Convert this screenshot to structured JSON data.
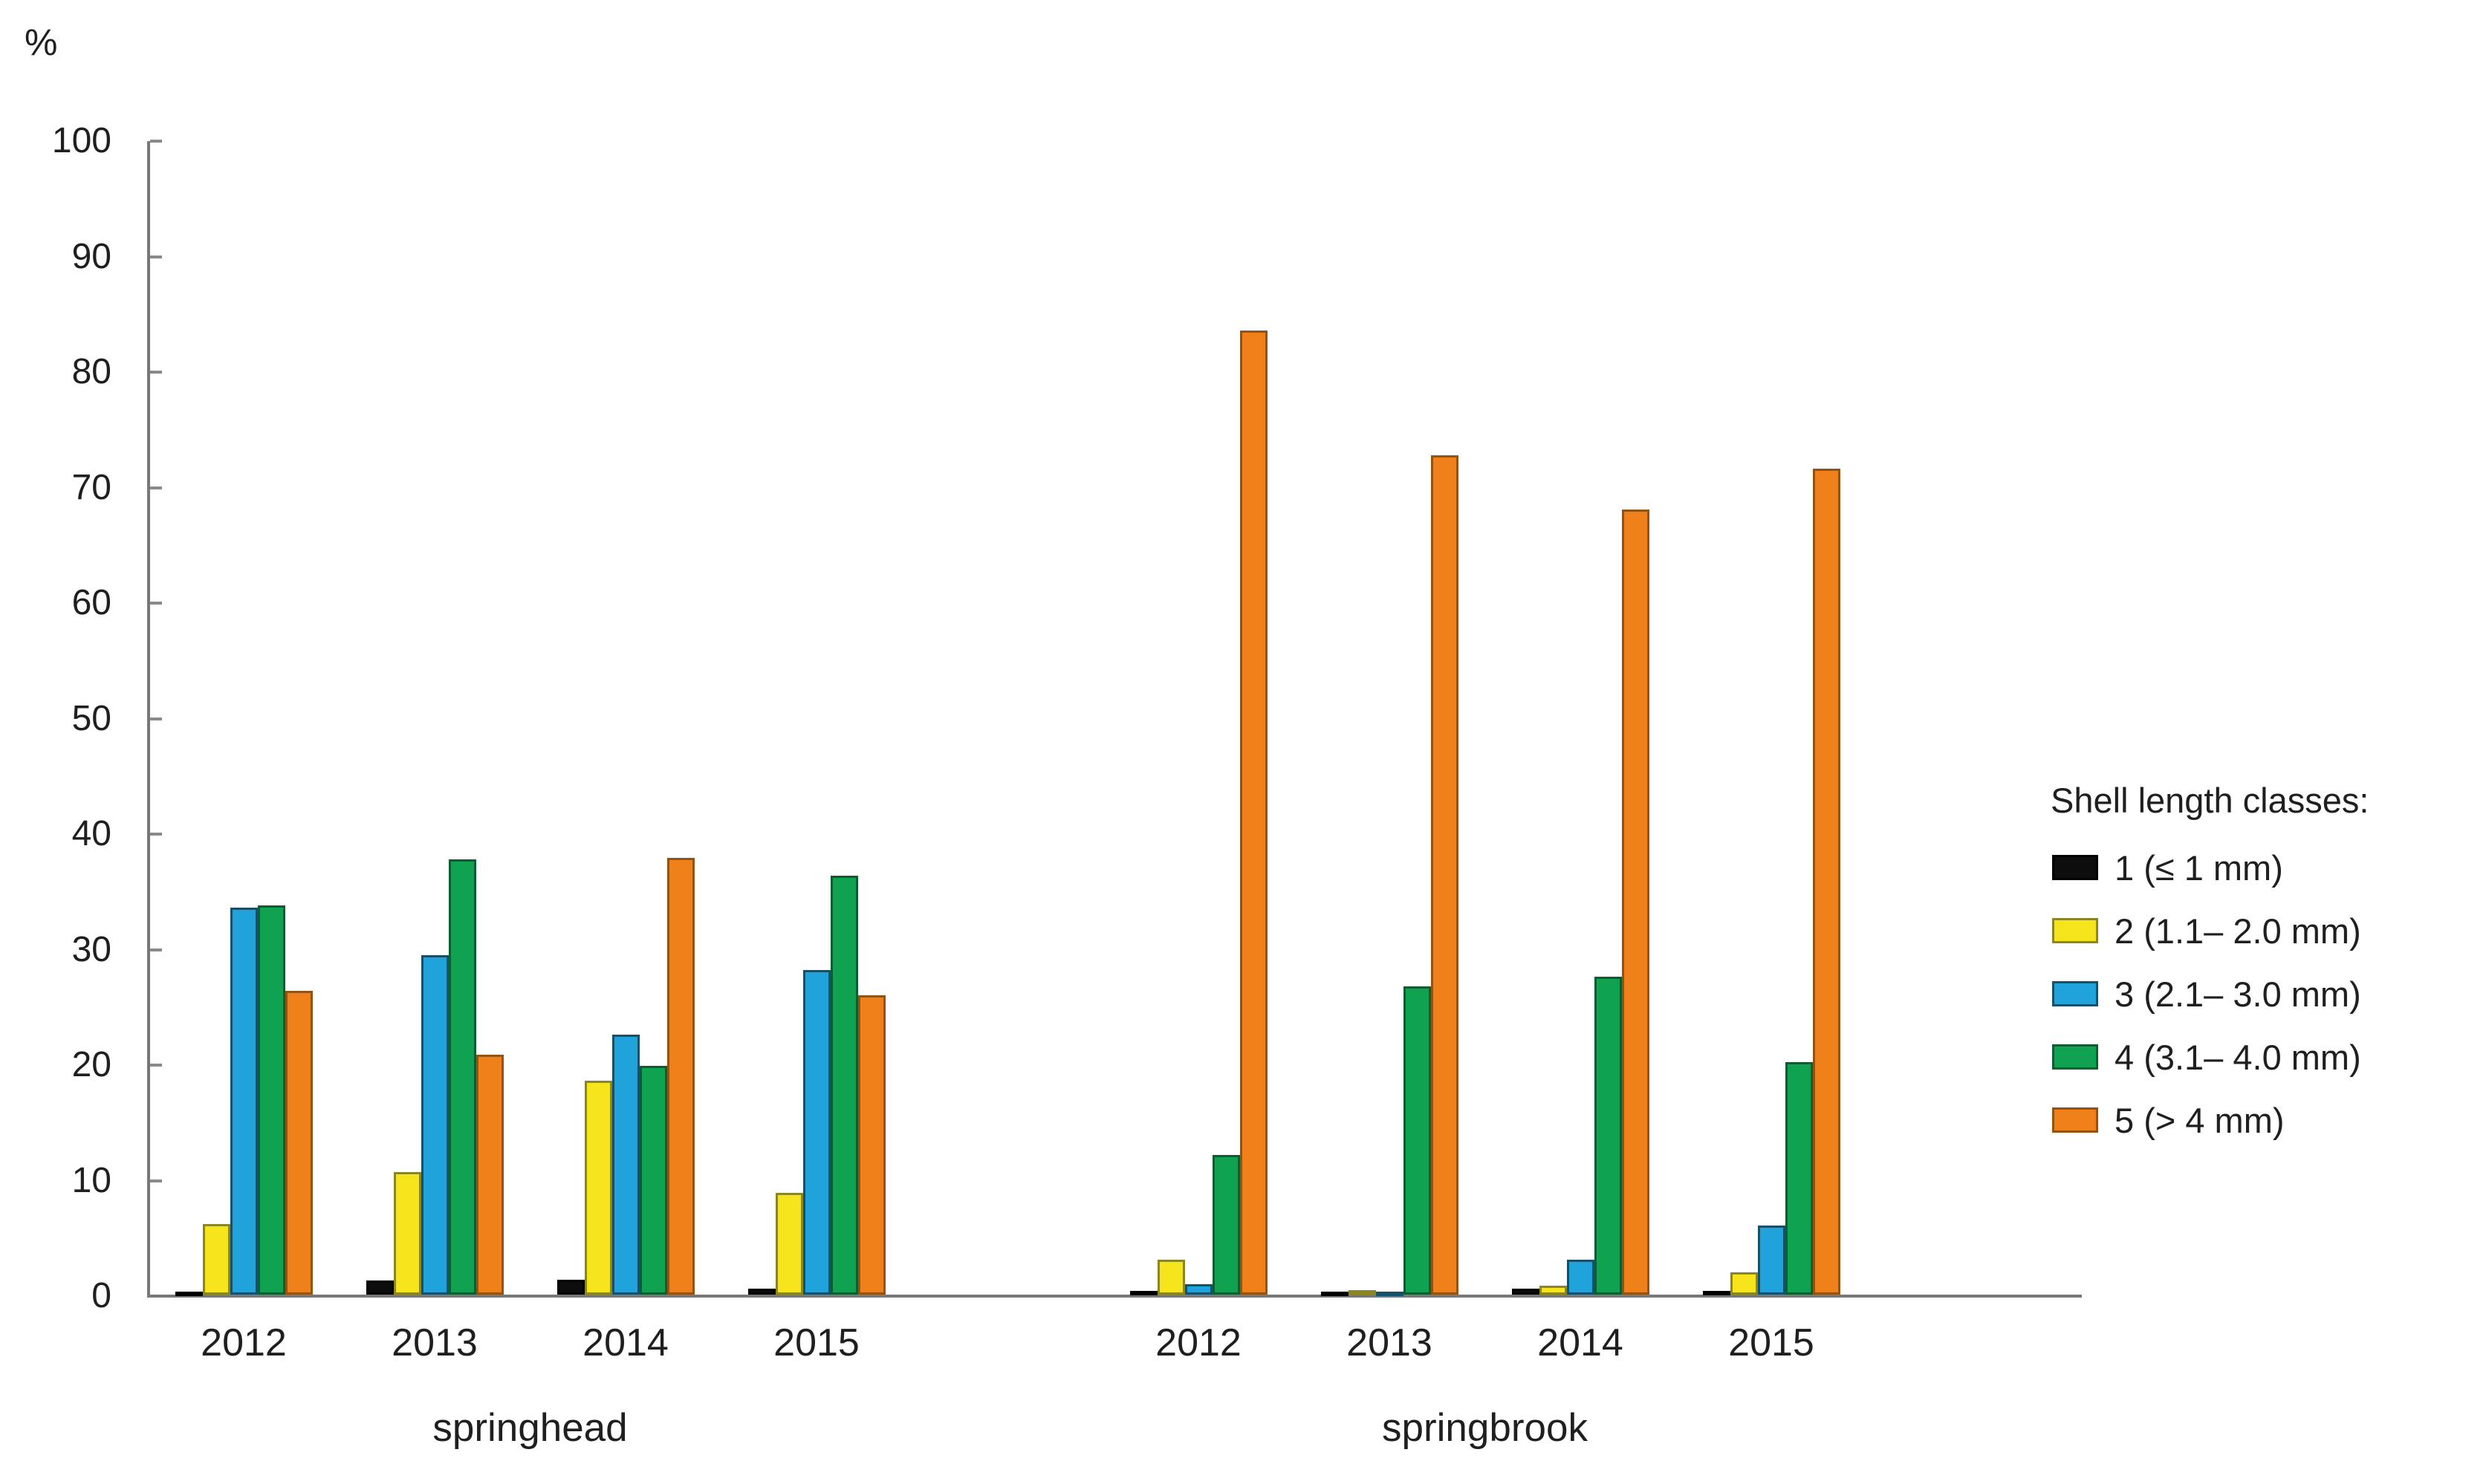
{
  "chart_data": {
    "type": "bar",
    "title": "",
    "ylabel": "%",
    "xlabel": "",
    "ylim": [
      0,
      100
    ],
    "yticks": [
      0,
      10,
      20,
      30,
      40,
      50,
      60,
      70,
      80,
      90,
      100
    ],
    "grid": false,
    "legend_position": "right",
    "legend_title": "Shell length classes:",
    "series": [
      {
        "name": "1 (≤ 1 mm)",
        "color": "#0d0d0d",
        "border": "#000000"
      },
      {
        "name": "2 (1.1– 2.0 mm)",
        "color": "#f6e41c",
        "border": "#8c861d"
      },
      {
        "name": "3 (2.1– 3.0 mm)",
        "color": "#20a2db",
        "border": "#15516d"
      },
      {
        "name": "4 (3.1– 4.0 mm)",
        "color": "#0fa351",
        "border": "#0a5e30"
      },
      {
        "name": "5 (> 4 mm)",
        "color": "#f08019",
        "border": "#96530f"
      }
    ],
    "sections": [
      {
        "label": "springhead"
      },
      {
        "label": "springbrook"
      }
    ],
    "groups": [
      {
        "location": "springhead",
        "year": "2012",
        "values": [
          0.2,
          6.1,
          33.5,
          33.7,
          26.3
        ]
      },
      {
        "location": "springhead",
        "year": "2013",
        "values": [
          1.2,
          10.6,
          29.4,
          37.7,
          20.8
        ]
      },
      {
        "location": "springhead",
        "year": "2014",
        "values": [
          1.3,
          18.5,
          22.5,
          19.8,
          37.8
        ]
      },
      {
        "location": "springhead",
        "year": "2015",
        "values": [
          0.5,
          8.8,
          28.1,
          36.3,
          25.9
        ]
      },
      {
        "location": "springbrook",
        "year": "2012",
        "values": [
          0.3,
          3.0,
          0.9,
          12.1,
          83.5
        ]
      },
      {
        "location": "springbrook",
        "year": "2013",
        "values": [
          0.2,
          0.4,
          0.2,
          26.7,
          72.7
        ]
      },
      {
        "location": "springbrook",
        "year": "2014",
        "values": [
          0.5,
          0.8,
          3.0,
          27.5,
          68.0
        ]
      },
      {
        "location": "springbrook",
        "year": "2015",
        "values": [
          0.3,
          1.9,
          6.0,
          20.1,
          71.5
        ]
      }
    ]
  }
}
